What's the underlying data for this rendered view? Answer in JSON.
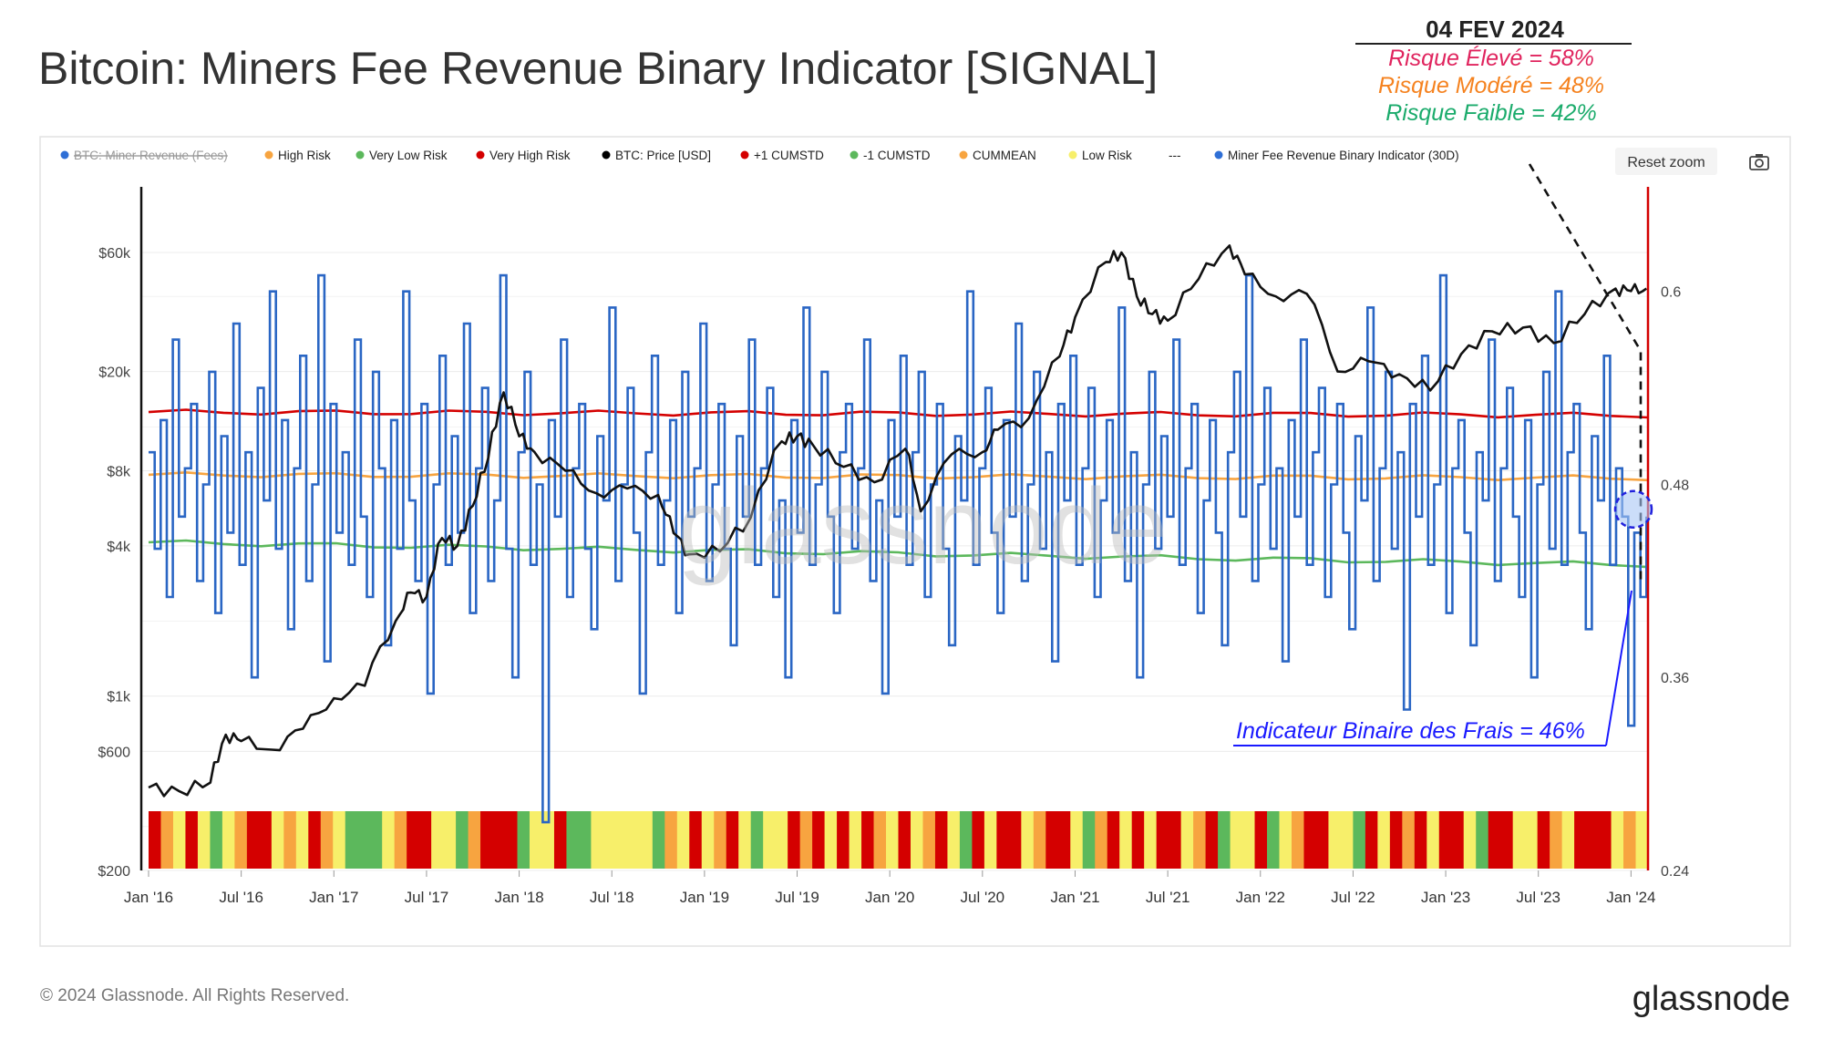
{
  "page": {
    "title": "Bitcoin: Miners Fee Revenue Binary Indicator [SIGNAL]",
    "copyright": "© 2024 Glassnode. All Rights Reserved.",
    "logo": "glassnode",
    "watermark": "glassnode",
    "reset_zoom": "Reset zoom",
    "camera_icon": "camera-icon"
  },
  "annotation": {
    "date": "04 FEV 2024",
    "risk_high": "Risque Élevé = 58%",
    "risk_moderate": "Risque Modéré = 48%",
    "risk_low": "Risque Faible = 42%",
    "indicator_label": "Indicateur Binaire des Frais = 46%",
    "colors": {
      "high": "#e0245e",
      "moderate": "#f5821f",
      "low": "#1aab6b",
      "indicator": "#1a1aff"
    }
  },
  "legend": [
    {
      "label": "BTC: Miner Revenue (Fees)",
      "color": "#2f6fd6",
      "disabled": true
    },
    {
      "label": "High Risk",
      "color": "#f7a440"
    },
    {
      "label": "Very Low Risk",
      "color": "#5cb85c"
    },
    {
      "label": "Very High Risk",
      "color": "#d40000"
    },
    {
      "label": "BTC: Price [USD]",
      "color": "#000000"
    },
    {
      "label": "+1 CUMSTD",
      "color": "#d40000"
    },
    {
      "label": "-1 CUMSTD",
      "color": "#5cb85c"
    },
    {
      "label": "CUMMEAN",
      "color": "#f7a440"
    },
    {
      "label": "Low Risk",
      "color": "#f7ef6a"
    },
    {
      "label": "---",
      "color": "none"
    },
    {
      "label": "Miner Fee Revenue Binary Indicator (30D)",
      "color": "#2f6fd6"
    }
  ],
  "chart_data": {
    "type": "line",
    "x_ticks": [
      "Jan '16",
      "Jul '16",
      "Jan '17",
      "Jul '17",
      "Jan '18",
      "Jul '18",
      "Jan '19",
      "Jul '19",
      "Jan '20",
      "Jul '20",
      "Jan '21",
      "Jul '21",
      "Jan '22",
      "Jul '22",
      "Jan '23",
      "Jul '23",
      "Jan '24"
    ],
    "y_left": {
      "label": "BTC: Price [USD]",
      "scale": "log",
      "ticks": [
        "$200",
        "$600",
        "$1k",
        "$4k",
        "$8k",
        "$20k",
        "$60k"
      ],
      "tick_values": [
        200,
        600,
        1000,
        4000,
        8000,
        20000,
        60000
      ],
      "range": [
        200,
        110000
      ]
    },
    "y_right": {
      "label": "Miner Fee Revenue Binary Indicator (30D)",
      "ticks": [
        "0.24",
        "0.36",
        "0.48",
        "0.6"
      ],
      "tick_values": [
        0.24,
        0.36,
        0.48,
        0.6
      ],
      "range": [
        0.24,
        0.6
      ]
    },
    "price_series": {
      "name": "BTC: Price [USD]",
      "points": [
        [
          "2016-01",
          430
        ],
        [
          "2016-03",
          415
        ],
        [
          "2016-05",
          450
        ],
        [
          "2016-06",
          700
        ],
        [
          "2016-07",
          660
        ],
        [
          "2016-09",
          610
        ],
        [
          "2016-11",
          740
        ],
        [
          "2017-01",
          980
        ],
        [
          "2017-03",
          1100
        ],
        [
          "2017-05",
          2000
        ],
        [
          "2017-06",
          2600
        ],
        [
          "2017-07",
          2500
        ],
        [
          "2017-08",
          4300
        ],
        [
          "2017-09",
          4000
        ],
        [
          "2017-10",
          5800
        ],
        [
          "2017-11",
          9000
        ],
        [
          "2017-12",
          16500
        ],
        [
          "2018-01",
          11000
        ],
        [
          "2018-02",
          9500
        ],
        [
          "2018-04",
          8000
        ],
        [
          "2018-06",
          6500
        ],
        [
          "2018-08",
          6800
        ],
        [
          "2018-10",
          6400
        ],
        [
          "2018-11",
          4500
        ],
        [
          "2018-12",
          3700
        ],
        [
          "2019-02",
          3800
        ],
        [
          "2019-04",
          5200
        ],
        [
          "2019-06",
          10500
        ],
        [
          "2019-07",
          11000
        ],
        [
          "2019-08",
          10200
        ],
        [
          "2019-10",
          8300
        ],
        [
          "2019-12",
          7200
        ],
        [
          "2020-02",
          9800
        ],
        [
          "2020-03",
          5500
        ],
        [
          "2020-05",
          9300
        ],
        [
          "2020-07",
          9500
        ],
        [
          "2020-08",
          11700
        ],
        [
          "2020-10",
          13000
        ],
        [
          "2020-12",
          23000
        ],
        [
          "2021-01",
          33000
        ],
        [
          "2021-03",
          55000
        ],
        [
          "2021-04",
          60000
        ],
        [
          "2021-05",
          40000
        ],
        [
          "2021-06",
          34000
        ],
        [
          "2021-07",
          32000
        ],
        [
          "2021-09",
          47000
        ],
        [
          "2021-11",
          64000
        ],
        [
          "2021-12",
          49000
        ],
        [
          "2022-02",
          40000
        ],
        [
          "2022-04",
          41000
        ],
        [
          "2022-06",
          20000
        ],
        [
          "2022-08",
          22000
        ],
        [
          "2022-10",
          19500
        ],
        [
          "2022-12",
          16800
        ],
        [
          "2023-02",
          23500
        ],
        [
          "2023-04",
          29000
        ],
        [
          "2023-06",
          30000
        ],
        [
          "2023-08",
          26000
        ],
        [
          "2023-10",
          34000
        ],
        [
          "2023-12",
          43000
        ],
        [
          "2024-01",
          42000
        ],
        [
          "2024-02",
          43000
        ]
      ]
    },
    "indicator_series": {
      "name": "Miner Fee Revenue Binary Indicator (30D)",
      "values": [
        0.5,
        0.44,
        0.52,
        0.41,
        0.57,
        0.46,
        0.49,
        0.53,
        0.42,
        0.48,
        0.55,
        0.4,
        0.51,
        0.45,
        0.58,
        0.43,
        0.5,
        0.36,
        0.54,
        0.47,
        0.6,
        0.44,
        0.52,
        0.39,
        0.49,
        0.56,
        0.42,
        0.48,
        0.61,
        0.37,
        0.53,
        0.45,
        0.5,
        0.43,
        0.57,
        0.46,
        0.41,
        0.55,
        0.49,
        0.38,
        0.52,
        0.44,
        0.6,
        0.47,
        0.42,
        0.53,
        0.35,
        0.48,
        0.56,
        0.43,
        0.51,
        0.45,
        0.58,
        0.4,
        0.49,
        0.54,
        0.42,
        0.47,
        0.61,
        0.44,
        0.36,
        0.5,
        0.55,
        0.43,
        0.48,
        0.27,
        0.52,
        0.46,
        0.57,
        0.41,
        0.49,
        0.53,
        0.44,
        0.39,
        0.51,
        0.47,
        0.59,
        0.42,
        0.48,
        0.54,
        0.45,
        0.35,
        0.5,
        0.56,
        0.43,
        0.47,
        0.52,
        0.4,
        0.55,
        0.46,
        0.49,
        0.58,
        0.42,
        0.48,
        0.53,
        0.44,
        0.38,
        0.51,
        0.46,
        0.57,
        0.43,
        0.49,
        0.54,
        0.41,
        0.47,
        0.36,
        0.52,
        0.45,
        0.59,
        0.43,
        0.48,
        0.55,
        0.46,
        0.4,
        0.5,
        0.53,
        0.44,
        0.49,
        0.57,
        0.42,
        0.47,
        0.35,
        0.52,
        0.46,
        0.56,
        0.43,
        0.5,
        0.55,
        0.41,
        0.48,
        0.53,
        0.44,
        0.38,
        0.51,
        0.47,
        0.6,
        0.43,
        0.49,
        0.54,
        0.45,
        0.4,
        0.52,
        0.46,
        0.58,
        0.42,
        0.48,
        0.55,
        0.44,
        0.5,
        0.37,
        0.53,
        0.47,
        0.56,
        0.43,
        0.49,
        0.54,
        0.41,
        0.47,
        0.52,
        0.45,
        0.59,
        0.42,
        0.5,
        0.36,
        0.48,
        0.55,
        0.44,
        0.51,
        0.46,
        0.57,
        0.43,
        0.49,
        0.53,
        0.4,
        0.47,
        0.52,
        0.45,
        0.38,
        0.5,
        0.55,
        0.46,
        0.61,
        0.42,
        0.48,
        0.54,
        0.44,
        0.49,
        0.37,
        0.52,
        0.46,
        0.57,
        0.43,
        0.5,
        0.54,
        0.41,
        0.48,
        0.53,
        0.45,
        0.39,
        0.51,
        0.47,
        0.59,
        0.42,
        0.49,
        0.55,
        0.44,
        0.5,
        0.34,
        0.53,
        0.46,
        0.56,
        0.43,
        0.48,
        0.61,
        0.4,
        0.49,
        0.52,
        0.45,
        0.38,
        0.5,
        0.47,
        0.57,
        0.42,
        0.49,
        0.54,
        0.46,
        0.41,
        0.52,
        0.36,
        0.48,
        0.55,
        0.44,
        0.6,
        0.43,
        0.5,
        0.53,
        0.45,
        0.39,
        0.51,
        0.47,
        0.56,
        0.43,
        0.49,
        0.46,
        0.33,
        0.45,
        0.41,
        0.46
      ],
      "x_start": "2016-01",
      "x_end": "2024-02"
    },
    "cumstd_plus": {
      "name": "+1 CUMSTD",
      "start": 0.525,
      "end": 0.523
    },
    "cummean": {
      "name": "CUMMEAN",
      "start": 0.486,
      "end": 0.484
    },
    "cumstd_minus": {
      "name": "-1 CUMSTD",
      "start": 0.444,
      "end": 0.43
    },
    "risk_band": {
      "name": "Risk zones",
      "categories": [
        "Very High Risk",
        "High Risk",
        "Low Risk",
        "Very Low Risk"
      ],
      "colors": {
        "Very High Risk": "#d40000",
        "High Risk": "#f7a440",
        "Low Risk": "#f7ef6a",
        "Very Low Risk": "#5cb85c"
      },
      "sequence": [
        "Very High Risk",
        "High Risk",
        "Low Risk",
        "Very High Risk",
        "Low Risk",
        "Very Low Risk",
        "Low Risk",
        "High Risk",
        "Very High Risk",
        "Very High Risk",
        "Low Risk",
        "High Risk",
        "Low Risk",
        "Very High Risk",
        "High Risk",
        "Low Risk",
        "Very Low Risk",
        "Very Low Risk",
        "Very Low Risk",
        "Low Risk",
        "High Risk",
        "Very High Risk",
        "Very High Risk",
        "Low Risk",
        "Low Risk",
        "Very Low Risk",
        "High Risk",
        "Very High Risk",
        "Very High Risk",
        "Very High Risk",
        "Very Low Risk",
        "Low Risk",
        "Low Risk",
        "Very High Risk",
        "Very Low Risk",
        "Very Low Risk",
        "Low Risk",
        "Low Risk",
        "Low Risk",
        "Low Risk",
        "Low Risk",
        "Very Low Risk",
        "High Risk",
        "Low Risk",
        "Very High Risk",
        "Low Risk",
        "High Risk",
        "Very High Risk",
        "Low Risk",
        "Very Low Risk",
        "Low Risk",
        "Low Risk",
        "Very High Risk",
        "High Risk",
        "Very High Risk",
        "Low Risk",
        "Very High Risk",
        "Low Risk",
        "Very High Risk",
        "High Risk",
        "Low Risk",
        "Very High Risk",
        "Low Risk",
        "High Risk",
        "Very High Risk",
        "Low Risk",
        "Very Low Risk",
        "Very High Risk",
        "Low Risk",
        "Very High Risk",
        "Very High Risk",
        "Low Risk",
        "High Risk",
        "Very High Risk",
        "Very High Risk",
        "Low Risk",
        "Very Low Risk",
        "High Risk",
        "Very High Risk",
        "Low Risk",
        "Very High Risk",
        "Low Risk",
        "Very High Risk",
        "Very High Risk",
        "Low Risk",
        "High Risk",
        "Very High Risk",
        "Very Low Risk",
        "Low Risk",
        "Low Risk",
        "Very High Risk",
        "Very Low Risk",
        "Low Risk",
        "High Risk",
        "Very High Risk",
        "Very High Risk",
        "Low Risk",
        "Low Risk",
        "Very Low Risk",
        "Very High Risk",
        "Low Risk",
        "Very High Risk",
        "High Risk",
        "Very High Risk",
        "Low Risk",
        "Very High Risk",
        "Very High Risk",
        "Low Risk",
        "Very Low Risk",
        "Very High Risk",
        "Very High Risk",
        "Low Risk",
        "Low Risk",
        "Very High Risk",
        "High Risk",
        "Low Risk",
        "Very High Risk",
        "Very High Risk",
        "Very High Risk",
        "Low Risk",
        "High Risk",
        "Low Risk"
      ]
    },
    "projection": {
      "from": "2024-01",
      "note": "dashed"
    }
  }
}
